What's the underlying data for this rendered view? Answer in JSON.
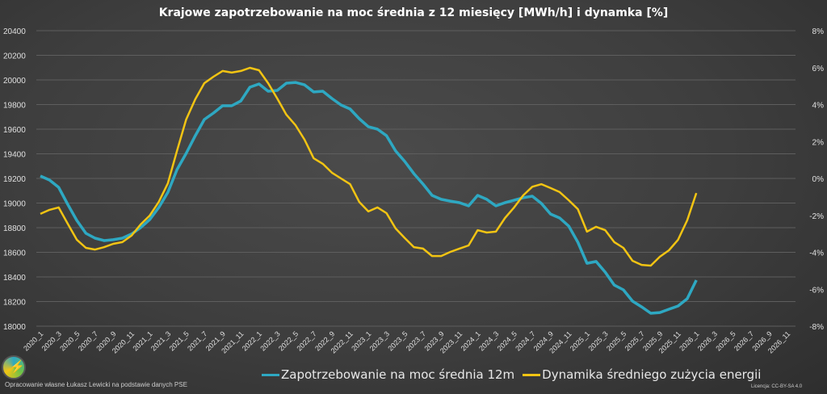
{
  "chart_data": {
    "type": "line",
    "title": "Krajowe zapotrzebowanie na moc średnia z 12 miesięcy [MWh/h] i dynamka [%]",
    "xlabel": "",
    "ylabel": "",
    "y_left": {
      "lim": [
        18000,
        20400
      ],
      "ticks": [
        "18000",
        "18200",
        "18400",
        "18600",
        "18800",
        "19000",
        "19200",
        "19400",
        "19600",
        "19800",
        "20000",
        "20200",
        "20400"
      ]
    },
    "y_right": {
      "lim": [
        -8,
        8
      ],
      "ticks": [
        "-8%",
        "-6%",
        "-4%",
        "-2%",
        "0%",
        "2%",
        "4%",
        "6%",
        "8%"
      ]
    },
    "grid": true,
    "legend_position": "bottom",
    "x_start": "2020_1",
    "x_tick_labels": [
      "2020_1",
      "2020_3",
      "2020_5",
      "2020_7",
      "2020_9",
      "2020_11",
      "2021_1",
      "2021_3",
      "2021_5",
      "2021_7",
      "2021_9",
      "2021_11",
      "2022_1",
      "2022_3",
      "2022_5",
      "2022_7",
      "2022_9",
      "2022_11",
      "2023_1",
      "2023_3",
      "2023_5",
      "2023_7",
      "2023_9",
      "2023_11",
      "2024_1",
      "2024_3",
      "2024_5",
      "2024_7",
      "2024_9",
      "2024_11",
      "2025_1",
      "2025_3",
      "2025_5",
      "2025_7",
      "2025_9",
      "2025_11",
      "2026_1",
      "2026_3",
      "2026_5",
      "2026_7",
      "2026_9",
      "2026_11"
    ],
    "series": [
      {
        "name": "Zapotrzebowanie na moc średnia 12m",
        "axis": "left",
        "color": "#2ea8c2",
        "values": [
          19220,
          19187,
          19128,
          18990,
          18859,
          18754,
          18715,
          18695,
          18702,
          18715,
          18748,
          18800,
          18866,
          18964,
          19088,
          19272,
          19403,
          19547,
          19679,
          19731,
          19790,
          19790,
          19829,
          19941,
          19967,
          19908,
          19915,
          19974,
          19980,
          19960,
          19902,
          19908,
          19849,
          19797,
          19764,
          19685,
          19620,
          19600,
          19547,
          19423,
          19338,
          19239,
          19154,
          19062,
          19030,
          19016,
          19003,
          18977,
          19062,
          19030,
          18977,
          19003,
          19023,
          19043,
          19056,
          18997,
          18911,
          18879,
          18813,
          18682,
          18511,
          18525,
          18439,
          18334,
          18295,
          18203,
          18157,
          18105,
          18111,
          18138,
          18164,
          18223,
          18374
        ]
      },
      {
        "name": "Dynamika średniego zużycia energii",
        "axis": "right",
        "color": "#f2c413",
        "values": [
          -1.92,
          -1.7,
          -1.57,
          -2.45,
          -3.32,
          -3.76,
          -3.85,
          -3.72,
          -3.54,
          -3.45,
          -3.1,
          -2.49,
          -2.01,
          -1.27,
          -0.26,
          1.5,
          3.19,
          4.29,
          5.16,
          5.51,
          5.82,
          5.73,
          5.82,
          5.99,
          5.86,
          5.16,
          4.33,
          3.45,
          2.89,
          2.1,
          1.09,
          0.79,
          0.31,
          0.0,
          -0.31,
          -1.27,
          -1.79,
          -1.57,
          -1.88,
          -2.71,
          -3.23,
          -3.72,
          -3.8,
          -4.2,
          -4.2,
          -3.98,
          -3.8,
          -3.63,
          -2.8,
          -2.93,
          -2.88,
          -2.14,
          -1.57,
          -0.92,
          -0.45,
          -0.31,
          -0.52,
          -0.74,
          -1.18,
          -1.66,
          -2.88,
          -2.62,
          -2.8,
          -3.45,
          -3.76,
          -4.46,
          -4.68,
          -4.72,
          -4.24,
          -3.89,
          -3.32,
          -2.27,
          -0.79
        ]
      }
    ]
  },
  "footer": {
    "credit": "Opracowanie własne Łukasz Lewicki na podstawie danych PSE",
    "license": "Licencja: CC-BY-SA 4.0"
  }
}
